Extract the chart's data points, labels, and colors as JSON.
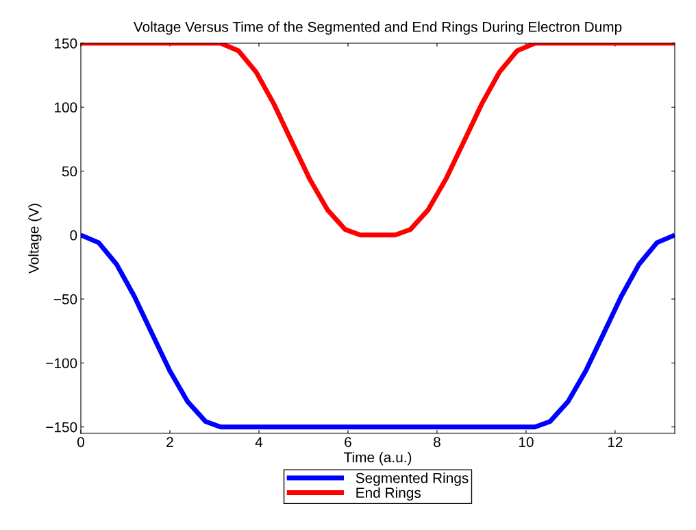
{
  "chart_data": {
    "type": "line",
    "title": "Voltage Versus Time of the Segmented and End Rings During Electron Dump",
    "xlabel": "Time (a.u.)",
    "ylabel": "Voltage (V)",
    "xlim": [
      0,
      13.34
    ],
    "xticks": [
      0,
      2,
      4,
      6,
      8,
      10,
      12
    ],
    "ylim": [
      -155,
      150
    ],
    "yticks": [
      -150,
      -100,
      -50,
      0,
      50,
      100,
      150
    ],
    "grid": false,
    "legend": "bottom",
    "marker": "none",
    "line_style": "solid",
    "series": [
      {
        "name": "Segmented Rings",
        "color": "#0000ff",
        "x": [
          0,
          0.4,
          0.8,
          1.2,
          1.6,
          2.0,
          2.4,
          2.8,
          3.14,
          10.2,
          10.54,
          10.94,
          11.34,
          11.74,
          12.14,
          12.54,
          12.94,
          13.34
        ],
        "values": [
          0,
          -5.9,
          -22.7,
          -47.8,
          -77.2,
          -106.2,
          -130.3,
          -145.7,
          -150,
          -150,
          -145.7,
          -130.3,
          -106.2,
          -77.2,
          -47.8,
          -22.7,
          -5.9,
          0
        ]
      },
      {
        "name": "End Rings",
        "color": "#ff0000",
        "x": [
          0,
          3.14,
          3.54,
          3.94,
          4.34,
          4.74,
          5.14,
          5.54,
          5.94,
          6.28,
          7.06,
          7.4,
          7.8,
          8.2,
          8.6,
          9.0,
          9.4,
          9.8,
          10.2,
          13.34
        ],
        "values": [
          150,
          150,
          144.1,
          127.3,
          102.2,
          72.8,
          43.8,
          19.7,
          4.3,
          0,
          0,
          4.3,
          19.7,
          43.8,
          72.8,
          102.2,
          127.3,
          144.1,
          150,
          150
        ]
      }
    ]
  }
}
